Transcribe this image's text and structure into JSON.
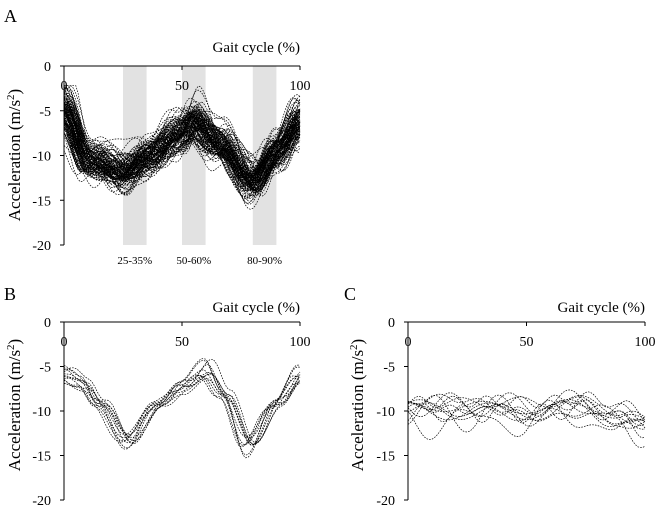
{
  "figure": {
    "panel_labels": [
      "A",
      "B",
      "C"
    ]
  },
  "chart_data": [
    {
      "id": "A",
      "type": "line",
      "panel_label": "A",
      "xlabel": "Gait cycle (%)",
      "ylabel": "Acceleration (m/s",
      "ylabel_sup": "2",
      "ylabel_close": ")",
      "xlim": [
        0,
        100
      ],
      "ylim": [
        -20,
        0
      ],
      "x_ticks": [
        0,
        50,
        100
      ],
      "y_ticks": [
        0,
        -5,
        -10,
        -15,
        -20
      ],
      "x_tick_labels": [
        "0",
        "50",
        "100"
      ],
      "y_tick_labels": [
        "0",
        "-5",
        "-10",
        "-15",
        "-20"
      ],
      "shaded_bands": [
        {
          "x_range": [
            25,
            35
          ],
          "label": "25-35%"
        },
        {
          "x_range": [
            50,
            60
          ],
          "label": "50-60%"
        },
        {
          "x_range": [
            80,
            90
          ],
          "label": "80-90%"
        }
      ],
      "series_count": 120,
      "mean_curve": {
        "x": [
          0,
          10,
          25,
          35,
          50,
          55,
          65,
          80,
          90,
          100
        ],
        "y": [
          -4.5,
          -10.5,
          -12,
          -10,
          -7.5,
          -6,
          -8.5,
          -13,
          -9.5,
          -6
        ]
      },
      "spread": 2.5
    },
    {
      "id": "B",
      "type": "line",
      "panel_label": "B",
      "xlabel": "Gait cycle (%)",
      "ylabel": "Acceleration (m/s",
      "ylabel_sup": "2",
      "ylabel_close": ")",
      "xlim": [
        0,
        100
      ],
      "ylim": [
        -20,
        0
      ],
      "x_ticks": [
        0,
        50,
        100
      ],
      "y_ticks": [
        0,
        -5,
        -10,
        -15,
        -20
      ],
      "x_tick_labels": [
        "0",
        "50",
        "100"
      ],
      "y_tick_labels": [
        "0",
        "-5",
        "-10",
        "-15",
        "-20"
      ],
      "series_count": 12,
      "mean_curve": {
        "x": [
          0,
          8,
          15,
          27,
          40,
          50,
          60,
          68,
          78,
          90,
          100
        ],
        "y": [
          -5.5,
          -6.5,
          -9,
          -13.5,
          -9,
          -7,
          -5,
          -8,
          -14,
          -9,
          -5.5
        ]
      },
      "spread": 0.8
    },
    {
      "id": "C",
      "type": "line",
      "panel_label": "C",
      "xlabel": "Gait cycle (%)",
      "ylabel": "Acceleration (m/s",
      "ylabel_sup": "2",
      "ylabel_close": ")",
      "xlim": [
        0,
        100
      ],
      "ylim": [
        -20,
        0
      ],
      "x_ticks": [
        0,
        50,
        100
      ],
      "y_ticks": [
        0,
        -5,
        -10,
        -15,
        -20
      ],
      "x_tick_labels": [
        "0",
        "50",
        "100"
      ],
      "y_tick_labels": [
        "0",
        "-5",
        "-10",
        "-15",
        "-20"
      ],
      "series_count": 12,
      "mean_curve": {
        "x": [
          0,
          25,
          50,
          75,
          90,
          100
        ],
        "y": [
          -10,
          -10,
          -10,
          -9.5,
          -11,
          -12
        ]
      },
      "spread": 2.5
    }
  ]
}
